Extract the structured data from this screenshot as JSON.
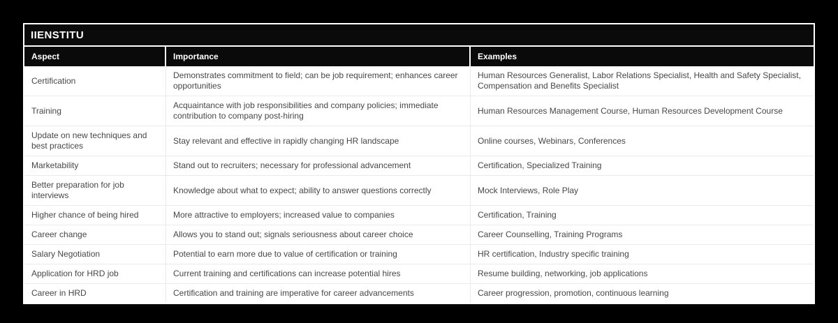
{
  "header": {
    "title": "IIENSTITU"
  },
  "table": {
    "columns": [
      "Aspect",
      "Importance",
      "Examples"
    ],
    "rows": [
      {
        "aspect": "Certification",
        "importance": "Demonstrates commitment to field; can be job requirement; enhances career opportunities",
        "examples": "Human Resources Generalist, Labor Relations Specialist, Health and Safety Specialist, Compensation and Benefits Specialist"
      },
      {
        "aspect": "Training",
        "importance": "Acquaintance with job responsibilities and company policies; immediate contribution to company post-hiring",
        "examples": "Human Resources Management Course, Human Resources Development Course"
      },
      {
        "aspect": "Update on new techniques and best practices",
        "importance": "Stay relevant and effective in rapidly changing HR landscape",
        "examples": "Online courses, Webinars, Conferences"
      },
      {
        "aspect": "Marketability",
        "importance": "Stand out to recruiters; necessary for professional advancement",
        "examples": "Certification, Specialized Training"
      },
      {
        "aspect": "Better preparation for job interviews",
        "importance": "Knowledge about what to expect; ability to answer questions correctly",
        "examples": "Mock Interviews, Role Play"
      },
      {
        "aspect": "Higher chance of being hired",
        "importance": "More attractive to employers; increased value to companies",
        "examples": "Certification, Training"
      },
      {
        "aspect": "Career change",
        "importance": "Allows you to stand out; signals seriousness about career choice",
        "examples": "Career Counselling, Training Programs"
      },
      {
        "aspect": "Salary Negotiation",
        "importance": "Potential to earn more due to value of certification or training",
        "examples": "HR certification, Industry specific training"
      },
      {
        "aspect": "Application for HRD job",
        "importance": "Current training and certifications can increase potential hires",
        "examples": "Resume building, networking, job applications"
      },
      {
        "aspect": "Career in HRD",
        "importance": "Certification and training are imperative for career advancements",
        "examples": "Career progression, promotion, continuous learning"
      }
    ]
  },
  "colors": {
    "page_background": "#000000",
    "table_background": "#ffffff",
    "header_background": "#0a0a0a",
    "header_text": "#ffffff",
    "body_text": "#474747",
    "grid_line": "#eaeaea"
  }
}
